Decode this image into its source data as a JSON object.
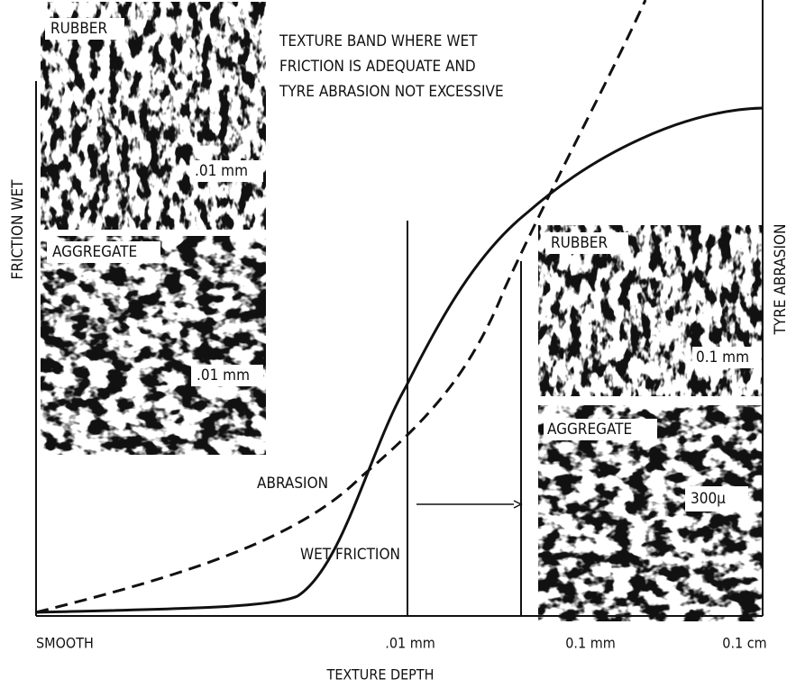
{
  "axes": {
    "y_left": "FRICTION WET",
    "y_right": "TYRE ABRASION",
    "x_title": "TEXTURE DEPTH",
    "x_labels": [
      "SMOOTH",
      ".01 mm",
      "0.1 mm",
      "0.1 cm"
    ]
  },
  "annotation": {
    "lines": [
      "TEXTURE BAND WHERE WET",
      "FRICTION IS ADEQUATE AND",
      "TYRE ABRASION NOT EXCESSIVE"
    ]
  },
  "curves": {
    "abrasion": "ABRASION",
    "wet_friction": "WET FRICTION"
  },
  "micrographs": [
    {
      "material": "RUBBER",
      "scale": ".01 mm"
    },
    {
      "material": "AGGREGATE",
      "scale": ".01 mm"
    },
    {
      "material": "RUBBER",
      "scale": "0.1 mm"
    },
    {
      "material": "AGGREGATE",
      "scale": "300μ"
    }
  ]
}
